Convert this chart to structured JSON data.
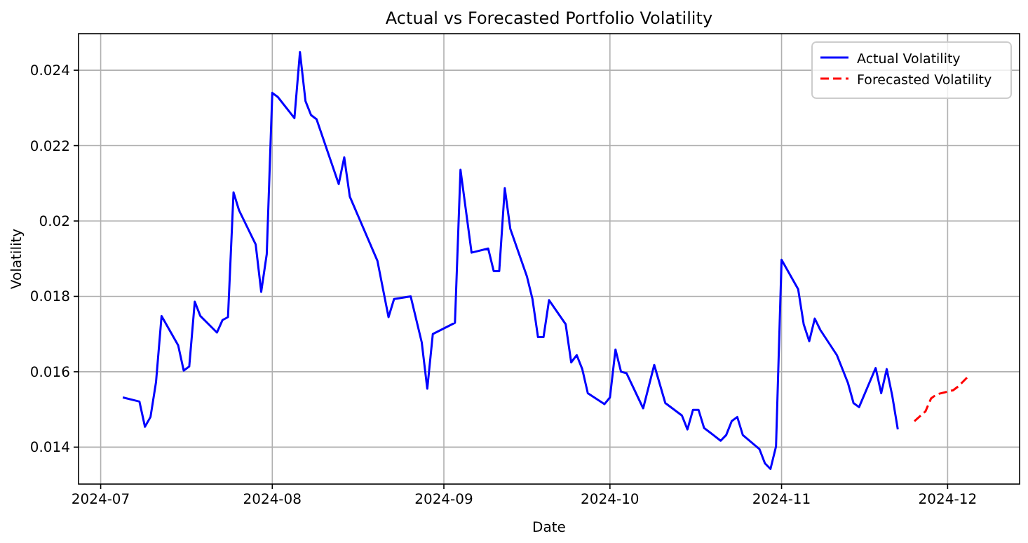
{
  "chart_data": {
    "type": "line",
    "title": "Actual vs Forecasted Portfolio Volatility",
    "xlabel": "Date",
    "ylabel": "Volatility",
    "xlim": [
      "2024-06-27",
      "2024-12-14"
    ],
    "ylim": [
      0.01302,
      0.02497
    ],
    "xticks": [
      {
        "value": "2024-07",
        "label": "2024-07"
      },
      {
        "value": "2024-08",
        "label": "2024-08"
      },
      {
        "value": "2024-09",
        "label": "2024-09"
      },
      {
        "value": "2024-10",
        "label": "2024-10"
      },
      {
        "value": "2024-11",
        "label": "2024-11"
      },
      {
        "value": "2024-12",
        "label": "2024-12"
      }
    ],
    "yticks": [
      0.014,
      0.016,
      0.018,
      0.02,
      0.022,
      0.024
    ],
    "grid": true,
    "legend": "top right",
    "series": [
      {
        "name": "Actual Volatility",
        "color": "#0000ff",
        "line_style": "solid",
        "x": [
          "2024-07-05",
          "2024-07-08",
          "2024-07-09",
          "2024-07-10",
          "2024-07-11",
          "2024-07-12",
          "2024-07-15",
          "2024-07-16",
          "2024-07-17",
          "2024-07-18",
          "2024-07-19",
          "2024-07-22",
          "2024-07-23",
          "2024-07-24",
          "2024-07-25",
          "2024-07-26",
          "2024-07-29",
          "2024-07-30",
          "2024-07-31",
          "2024-08-01",
          "2024-08-02",
          "2024-08-05",
          "2024-08-06",
          "2024-08-07",
          "2024-08-08",
          "2024-08-09",
          "2024-08-13",
          "2024-08-14",
          "2024-08-15",
          "2024-08-20",
          "2024-08-22",
          "2024-08-23",
          "2024-08-26",
          "2024-08-28",
          "2024-08-29",
          "2024-08-30",
          "2024-09-03",
          "2024-09-04",
          "2024-09-06",
          "2024-09-09",
          "2024-09-10",
          "2024-09-11",
          "2024-09-12",
          "2024-09-13",
          "2024-09-16",
          "2024-09-17",
          "2024-09-18",
          "2024-09-19",
          "2024-09-20",
          "2024-09-23",
          "2024-09-24",
          "2024-09-25",
          "2024-09-26",
          "2024-09-27",
          "2024-09-30",
          "2024-10-01",
          "2024-10-02",
          "2024-10-03",
          "2024-10-04",
          "2024-10-07",
          "2024-10-09",
          "2024-10-11",
          "2024-10-14",
          "2024-10-15",
          "2024-10-16",
          "2024-10-17",
          "2024-10-18",
          "2024-10-21",
          "2024-10-22",
          "2024-10-23",
          "2024-10-24",
          "2024-10-25",
          "2024-10-28",
          "2024-10-29",
          "2024-10-30",
          "2024-10-31",
          "2024-11-01",
          "2024-11-04",
          "2024-11-05",
          "2024-11-06",
          "2024-11-07",
          "2024-11-08",
          "2024-11-11",
          "2024-11-13",
          "2024-11-14",
          "2024-11-15",
          "2024-11-18",
          "2024-11-19",
          "2024-11-20",
          "2024-11-21",
          "2024-11-22"
        ],
        "values": [
          0.01532,
          0.01521,
          0.01454,
          0.0148,
          0.01573,
          0.01748,
          0.0167,
          0.01603,
          0.01614,
          0.01786,
          0.01748,
          0.01704,
          0.01737,
          0.01745,
          0.02076,
          0.02028,
          0.01938,
          0.01812,
          0.01912,
          0.0234,
          0.02329,
          0.02273,
          0.02448,
          0.02318,
          0.02281,
          0.0227,
          0.02098,
          0.02169,
          0.02065,
          0.01894,
          0.01745,
          0.01793,
          0.018,
          0.01678,
          0.01555,
          0.017,
          0.0173,
          0.02136,
          0.01916,
          0.01927,
          0.01867,
          0.01867,
          0.02087,
          0.01979,
          0.01853,
          0.01793,
          0.01692,
          0.01692,
          0.0179,
          0.01726,
          0.01625,
          0.01644,
          0.01607,
          0.01543,
          0.01514,
          0.01532,
          0.01659,
          0.016,
          0.01596,
          0.01503,
          0.01618,
          0.01517,
          0.01484,
          0.01447,
          0.01499,
          0.01499,
          0.01451,
          0.01417,
          0.01432,
          0.01469,
          0.0148,
          0.01432,
          0.01395,
          0.01357,
          0.01342,
          0.01402,
          0.01897,
          0.01819,
          0.01726,
          0.01681,
          0.01741,
          0.01711,
          0.01644,
          0.0157,
          0.01517,
          0.01506,
          0.0161,
          0.01543,
          0.01607,
          0.01536,
          0.01447
        ]
      },
      {
        "name": "Forecasted Volatility",
        "color": "#ff0000",
        "line_style": "dashed",
        "x": [
          "2024-11-25",
          "2024-11-27",
          "2024-11-28",
          "2024-11-29",
          "2024-12-02",
          "2024-12-03",
          "2024-12-05"
        ],
        "values": [
          0.01469,
          0.01495,
          0.01529,
          0.0154,
          0.01551,
          0.01562,
          0.01592
        ]
      }
    ]
  }
}
